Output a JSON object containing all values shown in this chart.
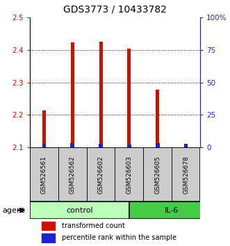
{
  "title": "GDS3773 / 10433782",
  "samples": [
    "GSM526561",
    "GSM526562",
    "GSM526602",
    "GSM526603",
    "GSM526605",
    "GSM526678"
  ],
  "red_values": [
    2.213,
    2.422,
    2.425,
    2.403,
    2.278,
    2.101
  ],
  "blue_values": [
    0.012,
    0.013,
    0.012,
    0.01,
    0.013,
    0.012
  ],
  "ylim": [
    2.1,
    2.5
  ],
  "yticks": [
    2.1,
    2.2,
    2.3,
    2.4,
    2.5
  ],
  "right_yticks": [
    0,
    25,
    50,
    75,
    100
  ],
  "right_ylabels": [
    "0",
    "25",
    "50",
    "75",
    "100%"
  ],
  "bar_width": 0.12,
  "red_color": "#cc1100",
  "blue_color": "#2222cc",
  "control_color": "#bbffbb",
  "il6_color": "#44cc44",
  "sample_box_color": "#cccccc",
  "agent_label": "agent",
  "legend_red": "transformed count",
  "legend_blue": "percentile rank within the sample",
  "title_fontsize": 10,
  "tick_fontsize": 7.5,
  "sample_fontsize": 6.5,
  "group_fontsize": 8
}
